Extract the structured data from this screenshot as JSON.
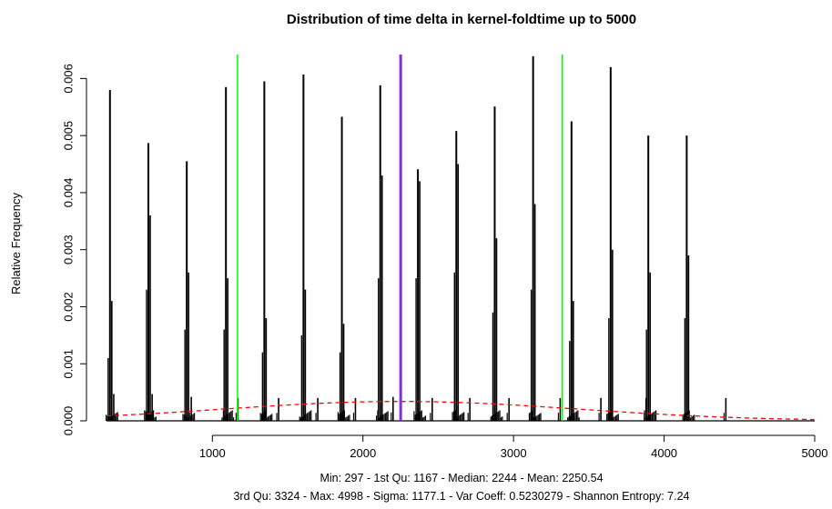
{
  "chart_data": {
    "type": "bar",
    "title": "Distribution of time delta in kernel-foldtime up to 5000",
    "ylabel": "Relative Frequency",
    "xlabel": "",
    "xlim": [
      297,
      5000
    ],
    "ylim": [
      0,
      0.0065
    ],
    "x_ticks": [
      1000,
      2000,
      3000,
      4000,
      5000
    ],
    "x_tick_labels": [
      "1000",
      "2000",
      "3000",
      "4000",
      "5000"
    ],
    "y_ticks": [
      0,
      0.001,
      0.002,
      0.003,
      0.004,
      0.005,
      0.006
    ],
    "y_tick_labels": [
      "0.000",
      "0.001",
      "0.002",
      "0.003",
      "0.004",
      "0.005",
      "0.006"
    ],
    "peaks": [
      {
        "x": 320,
        "values": [
          0.0058,
          0.0021,
          0.0011
        ]
      },
      {
        "x": 575,
        "values": [
          0.00487,
          0.0036,
          0.0023
        ]
      },
      {
        "x": 830,
        "values": [
          0.00455,
          0.0026,
          0.0016
        ]
      },
      {
        "x": 1090,
        "values": [
          0.00585,
          0.0025,
          0.0016
        ]
      },
      {
        "x": 1345,
        "values": [
          0.00595,
          0.0018,
          0.0012
        ]
      },
      {
        "x": 1605,
        "values": [
          0.00607,
          0.0023,
          0.0015
        ]
      },
      {
        "x": 1860,
        "values": [
          0.00533,
          0.0017,
          0.0012
        ]
      },
      {
        "x": 2115,
        "values": [
          0.00588,
          0.0043,
          0.0025
        ]
      },
      {
        "x": 2365,
        "values": [
          0.00441,
          0.0042,
          0.0025
        ]
      },
      {
        "x": 2620,
        "values": [
          0.00508,
          0.0045,
          0.0026
        ]
      },
      {
        "x": 2875,
        "values": [
          0.00551,
          0.0032,
          0.0019
        ]
      },
      {
        "x": 3130,
        "values": [
          0.00639,
          0.0038,
          0.0023
        ]
      },
      {
        "x": 3385,
        "values": [
          0.00525,
          0.0021,
          0.0014
        ]
      },
      {
        "x": 3645,
        "values": [
          0.0062,
          0.003,
          0.0018
        ]
      },
      {
        "x": 3895,
        "values": [
          0.005,
          0.0026,
          0.0016
        ]
      },
      {
        "x": 4150,
        "values": [
          0.005,
          0.0029,
          0.0018
        ]
      }
    ],
    "minor_peaks": [
      {
        "x": 345,
        "value": 0.00047
      },
      {
        "x": 600,
        "value": 0.00047
      },
      {
        "x": 860,
        "value": 0.00042
      },
      {
        "x": 1170,
        "value": 0.0004
      },
      {
        "x": 1440,
        "value": 0.0004
      },
      {
        "x": 1700,
        "value": 0.0004
      },
      {
        "x": 1950,
        "value": 0.0004
      },
      {
        "x": 2200,
        "value": 0.00042
      },
      {
        "x": 2460,
        "value": 0.0004
      },
      {
        "x": 2710,
        "value": 0.0004
      },
      {
        "x": 2970,
        "value": 0.0004
      },
      {
        "x": 3310,
        "value": 0.0004
      },
      {
        "x": 3580,
        "value": 0.0004
      },
      {
        "x": 3880,
        "value": 0.0004
      },
      {
        "x": 4410,
        "value": 0.0004
      }
    ],
    "density_curve": {
      "color": "#ff0000",
      "style": "dashed",
      "mean": 2250.54,
      "sd": 1177.1,
      "peak_value": 0.00034
    },
    "vertical_lines": [
      {
        "x": 1167,
        "color": "#00ff00",
        "label": "1st Qu"
      },
      {
        "x": 3324,
        "color": "#00ff00",
        "label": "3rd Qu"
      },
      {
        "x": 2250.54,
        "color": "#8a2be2",
        "label": "Mean"
      }
    ],
    "bar_color": "#000000",
    "grid": false
  },
  "summary": {
    "line1": "Min: 297 - 1st Qu: 1167 - Median: 2244 - Mean: 2250.54",
    "line2": "3rd Qu: 3324 - Max: 4998 - Sigma: 1177.1 - Var Coeff: 0.5230279 - Shannon Entropy: 7.24"
  }
}
